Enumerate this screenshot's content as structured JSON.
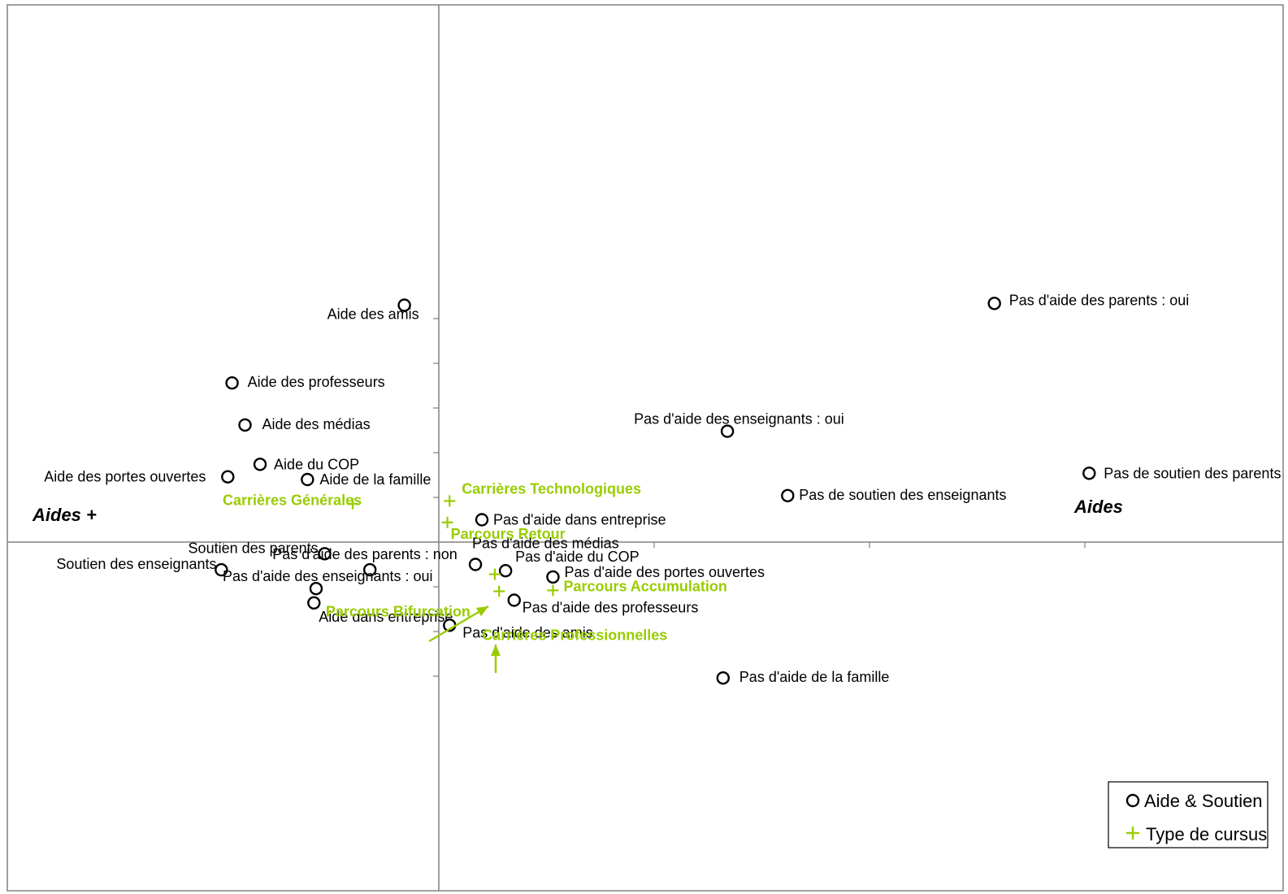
{
  "chart_data": {
    "type": "scatter",
    "title": "",
    "axis_titles": {
      "left": "Aides +",
      "right": "Aides"
    },
    "colors": {
      "aide": "#000000",
      "cursus": "#99cc00"
    },
    "legend": {
      "position": "bottom-right",
      "items": [
        {
          "label": "Aide & Soutien",
          "marker": "circle"
        },
        {
          "label": "Type de cursus",
          "marker": "plus"
        }
      ]
    },
    "series": [
      {
        "name": "Aide & Soutien",
        "marker": "circle",
        "points": [
          {
            "label": "Aide des amis",
            "x": -0.16,
            "y": 2.65
          },
          {
            "label": "Pas d'aide des parents : oui",
            "x": 2.58,
            "y": 2.67
          },
          {
            "label": "Aide des professeurs",
            "x": -0.96,
            "y": 1.78
          },
          {
            "label": "Aide des médias",
            "x": -0.9,
            "y": 1.31
          },
          {
            "label": "Pas d'aide des enseignants : oui",
            "x": 1.34,
            "y": 1.24
          },
          {
            "label": "Aide du COP",
            "x": -0.83,
            "y": 0.87
          },
          {
            "label": "Aide des portes ouvertes",
            "x": -0.98,
            "y": 0.73
          },
          {
            "label": "Aide de la famille",
            "x": -0.61,
            "y": 0.7
          },
          {
            "label": "Pas de soutien des parents",
            "x": 3.02,
            "y": 0.77
          },
          {
            "label": "Pas de soutien des enseignants",
            "x": 1.62,
            "y": 0.52
          },
          {
            "label": "Pas d'aide dans entreprise",
            "x": 0.2,
            "y": 0.25
          },
          {
            "label": "Soutien des parents",
            "x": -0.53,
            "y": -0.13
          },
          {
            "label": "Soutien des enseignants",
            "x": -1.01,
            "y": -0.31
          },
          {
            "label": "Pas d'aide des parents : non",
            "x": -0.32,
            "y": -0.31
          },
          {
            "label": "Pas d'aide des médias",
            "x": 0.17,
            "y": -0.25
          },
          {
            "label": "Pas d'aide du COP",
            "x": 0.31,
            "y": -0.32
          },
          {
            "label": "Pas d'aide des portes ouvertes",
            "x": 0.53,
            "y": -0.39
          },
          {
            "label": "Pas d'aide des enseignants : oui",
            "x": -0.57,
            "y": -0.52
          },
          {
            "label": "Aide dans entreprise",
            "x": -0.58,
            "y": -0.68
          },
          {
            "label": "Pas d'aide des professeurs",
            "x": 0.35,
            "y": -0.65
          },
          {
            "label": "Pas d'aide des amis",
            "x": 0.05,
            "y": -0.93
          },
          {
            "label": "Pas d'aide de la famille",
            "x": 1.32,
            "y": -1.52
          }
        ]
      },
      {
        "name": "Type de cursus",
        "marker": "plus",
        "points": [
          {
            "label": "Carrières Générales",
            "x": -0.4,
            "y": 0.43
          },
          {
            "label": "Carrières Technologiques",
            "x": 0.05,
            "y": 0.46
          },
          {
            "label": "Parcours Retour",
            "x": 0.04,
            "y": 0.22
          },
          {
            "label": "Parcours Bifurcation",
            "x": 0.26,
            "y": -0.36
          },
          {
            "label": "Parcours Accumulation",
            "x": 0.53,
            "y": -0.54
          },
          {
            "label": "Carrières Professionnelles",
            "x": 0.28,
            "y": -0.55
          }
        ]
      }
    ]
  }
}
